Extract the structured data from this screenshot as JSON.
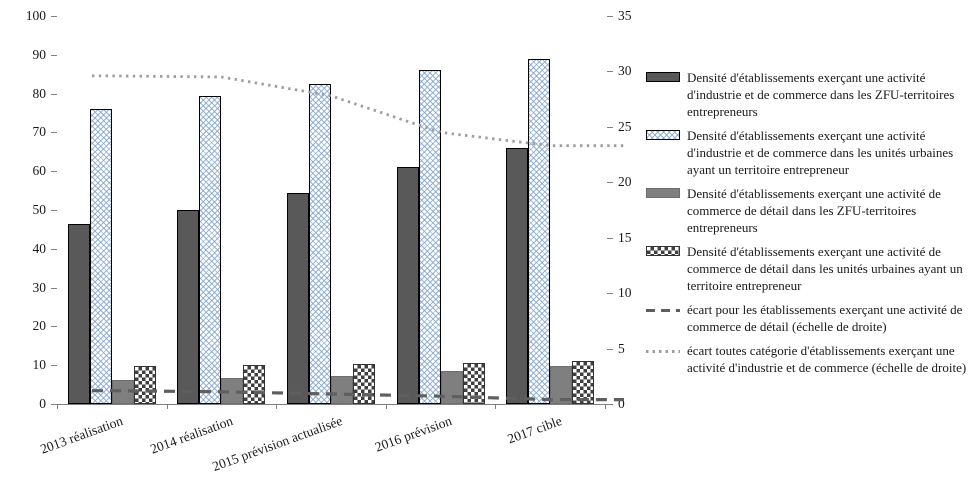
{
  "chart_data": {
    "type": "bar",
    "title": "",
    "categories": [
      "2013 réalisation",
      "2014 réalisation",
      "2015 prévision actualisée",
      "2016 prévision",
      "2017 cible"
    ],
    "series": [
      {
        "name": "Densité d'établissements exerçant une activité d'industrie et de commerce dans les ZFU-territoires entrepreneurs",
        "type": "bar",
        "style": "dark",
        "axis": "left",
        "values": [
          46.5,
          50,
          54.5,
          61,
          66
        ]
      },
      {
        "name": "Densité d'établissements exerçant une activité d'industrie et de commerce dans les unités urbaines ayant un territoire entrepreneur",
        "type": "bar",
        "style": "bluehatch",
        "axis": "left",
        "values": [
          76,
          79.5,
          82.5,
          86,
          89
        ]
      },
      {
        "name": "Densité d'établissements exerçant une activité de commerce de détail dans les ZFU-territoires entrepreneurs",
        "type": "bar",
        "style": "gray",
        "axis": "left",
        "values": [
          6.1,
          6.6,
          7.2,
          8.6,
          9.9
        ]
      },
      {
        "name": "Densité d'établissements exerçant une activité de commerce de détail dans les unités urbaines ayant un territoire entrepreneur",
        "type": "bar",
        "style": "checker",
        "axis": "left",
        "values": [
          9.8,
          10,
          10.3,
          10.7,
          11
        ]
      },
      {
        "name": "écart pour les établissements exerçant une activité de commerce de détail (échelle de droite)",
        "type": "line",
        "style": "dashed",
        "axis": "right",
        "values": [
          1.2,
          1.1,
          0.9,
          0.7,
          0.4
        ]
      },
      {
        "name": "écart toutes catégorie d'établissements exerçant une activité d'industrie et de commerce (échelle de droite)",
        "type": "line",
        "style": "dotted",
        "axis": "right",
        "values": [
          29.6,
          29.5,
          27.8,
          24.5,
          23.3
        ]
      }
    ],
    "left_axis": {
      "min": 0,
      "max": 100,
      "step": 10
    },
    "right_axis": {
      "min": 0,
      "max": 35,
      "step": 5
    },
    "legend_position": "right",
    "grid": false
  },
  "colors": {
    "dark_bar": "#595959",
    "gray_bar": "#7f7f7f",
    "hatch_blue": "#7da2ce",
    "checker_dark": "#3f3f3f",
    "dashed_line": "#5f5f5f",
    "dotted_line": "#9d9d9d",
    "axis": "#808080",
    "text": "#1a1a1a"
  }
}
